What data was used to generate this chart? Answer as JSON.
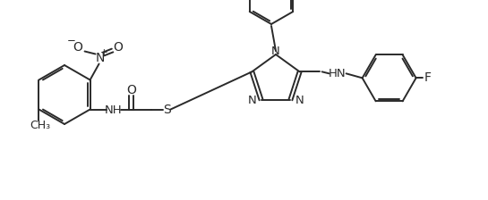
{
  "bg_color": "#ffffff",
  "line_color": "#2a2a2a",
  "lw": 1.4,
  "fs": 9.5,
  "figsize": [
    5.45,
    2.24
  ],
  "dpi": 100,
  "xlim": [
    0,
    545
  ],
  "ylim": [
    0,
    224
  ]
}
